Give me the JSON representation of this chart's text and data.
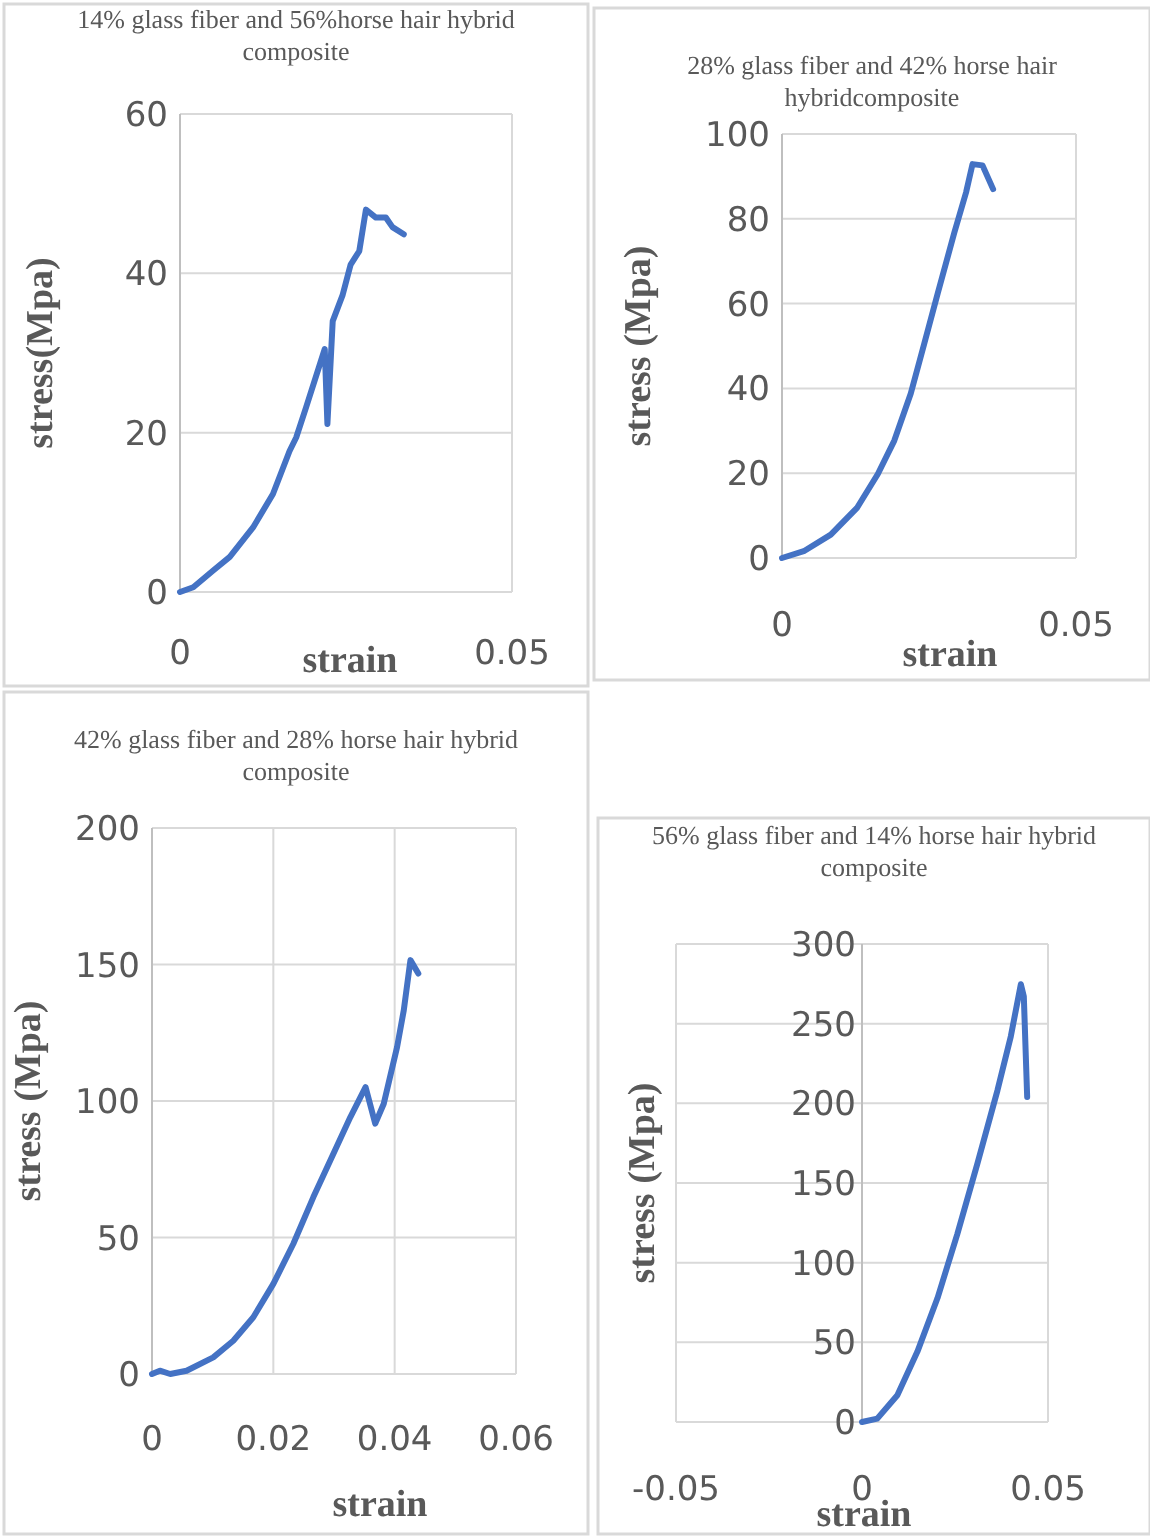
{
  "chart_data": [
    {
      "type": "line",
      "title": "14% glass fiber and 56%horse hair hybrid composite",
      "xlabel": "strain",
      "ylabel": "stress(Mpa)",
      "xlim": [
        0,
        0.05
      ],
      "xticks": [
        0,
        0.05
      ],
      "ylim": [
        0,
        60
      ],
      "yticks": [
        0,
        20,
        40,
        60
      ],
      "grid": true,
      "series": [
        {
          "color": "#4472c4",
          "x": [
            0,
            0.002,
            0.005,
            0.0075,
            0.011,
            0.014,
            0.0165,
            0.0175,
            0.019,
            0.0218,
            0.0222,
            0.023,
            0.0245,
            0.0257,
            0.027,
            0.028,
            0.0295,
            0.031,
            0.032,
            0.0337
          ],
          "values": [
            0,
            0.6,
            2.7,
            4.4,
            8.1,
            12.3,
            17.7,
            19.4,
            23.2,
            30.5,
            21.1,
            34,
            37.3,
            41.1,
            42.8,
            48,
            47,
            47,
            45.8,
            44.9
          ]
        }
      ]
    },
    {
      "type": "line",
      "title": "28% glass fiber and 42% horse hair hybridcomposite",
      "xlabel": "strain",
      "ylabel": "stress (Mpa)",
      "xlim": [
        0,
        0.05
      ],
      "xticks": [
        0,
        0.05
      ],
      "ylim": [
        0,
        100
      ],
      "yticks": [
        0,
        20,
        40,
        60,
        80,
        100
      ],
      "grid": true,
      "series": [
        {
          "color": "#4472c4",
          "x": [
            0,
            0.0037,
            0.0083,
            0.0128,
            0.0163,
            0.0191,
            0.0219,
            0.0242,
            0.0265,
            0.0293,
            0.0313,
            0.0324,
            0.0341,
            0.0359
          ],
          "values": [
            0,
            1.6,
            5.5,
            11.9,
            19.8,
            27.7,
            38.8,
            50.6,
            62.5,
            76.7,
            86.2,
            92.9,
            92.6,
            87
          ]
        }
      ]
    },
    {
      "type": "line",
      "title": "42% glass fiber and 28% horse hair hybrid composite",
      "xlabel": "strain",
      "ylabel": "stress (Mpa)",
      "xlim": [
        0,
        0.06
      ],
      "xticks": [
        0,
        0.02,
        0.04,
        0.06
      ],
      "ylim": [
        0,
        200
      ],
      "yticks": [
        0,
        50,
        100,
        150,
        200
      ],
      "grid": true,
      "series": [
        {
          "color": "#4472c4",
          "x": [
            0,
            0.0013,
            0.003,
            0.0057,
            0.0101,
            0.0134,
            0.0167,
            0.02,
            0.0233,
            0.0266,
            0.0299,
            0.0327,
            0.0352,
            0.0368,
            0.0382,
            0.0404,
            0.0415,
            0.0426,
            0.0439
          ],
          "values": [
            0,
            1.2,
            0,
            1.2,
            6.1,
            12.2,
            20.8,
            33,
            47.7,
            64.8,
            80.7,
            94.1,
            105.1,
            91.7,
            99,
            119.8,
            133.2,
            151.6,
            146.7
          ]
        }
      ]
    },
    {
      "type": "line",
      "title": "56% glass fiber and 14% horse hair hybrid composite",
      "xlabel": "strain",
      "ylabel": "stress (Mpa)",
      "xlim": [
        -0.05,
        0.05
      ],
      "xticks": [
        -0.05,
        0,
        0.05
      ],
      "ylim": [
        0,
        300
      ],
      "yticks": [
        0,
        50,
        100,
        150,
        200,
        250,
        300
      ],
      "grid": true,
      "series": [
        {
          "color": "#4472c4",
          "x": [
            0,
            0.0041,
            0.0095,
            0.0149,
            0.0203,
            0.0256,
            0.031,
            0.0364,
            0.04,
            0.0427,
            0.0435,
            0.0444
          ],
          "values": [
            0,
            2.1,
            16.8,
            44.2,
            77.8,
            117.8,
            162,
            208,
            242,
            274.7,
            267,
            204
          ]
        }
      ]
    }
  ]
}
